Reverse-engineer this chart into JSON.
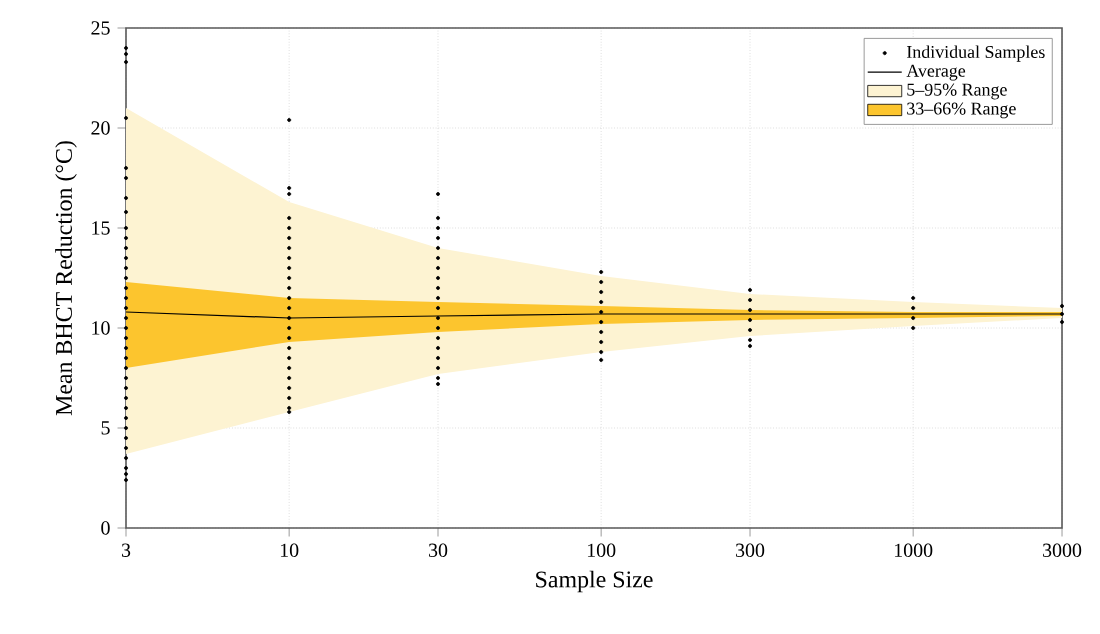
{
  "chart_data": {
    "type": "line",
    "xlabel": "Sample Size",
    "ylabel": "Mean BHCT Reduction (°C)",
    "log": "x",
    "grid": true,
    "legend": "top right",
    "xlim": [
      3,
      3000
    ],
    "xticks": [
      3,
      10,
      30,
      100,
      300,
      1000,
      3000
    ],
    "ylim": [
      0,
      25
    ],
    "yticks": [
      0,
      5,
      10,
      15,
      20,
      25
    ],
    "series": [
      {
        "name": "Individual Samples",
        "type": "scatter",
        "marker": "circle",
        "color": "#000000",
        "x": [
          3,
          3,
          3,
          3,
          3,
          3,
          3,
          3,
          3,
          3,
          3,
          3,
          3,
          3,
          3,
          3,
          3,
          3,
          3,
          3,
          3,
          3,
          3,
          3,
          3,
          3,
          3,
          3,
          3,
          3,
          3,
          3,
          3,
          3,
          3,
          10,
          10,
          10,
          10,
          10,
          10,
          10,
          10,
          10,
          10,
          10,
          10,
          10,
          10,
          10,
          10,
          10,
          10,
          10,
          10,
          10,
          10,
          10,
          10,
          30,
          30,
          30,
          30,
          30,
          30,
          30,
          30,
          30,
          30,
          30,
          30,
          30,
          30,
          30,
          30,
          30,
          30,
          30,
          100,
          100,
          100,
          100,
          100,
          100,
          100,
          100,
          100,
          100,
          300,
          300,
          300,
          300,
          300,
          300,
          300,
          1000,
          1000,
          1000,
          1000,
          3000,
          3000,
          3000
        ],
        "values": [
          24,
          23.7,
          23.3,
          20.5,
          18,
          17.5,
          16.5,
          15.8,
          15,
          14.5,
          14,
          13.5,
          13,
          12.5,
          12,
          11.5,
          11,
          10.5,
          10,
          9.5,
          9,
          8.5,
          8,
          7.5,
          7,
          6.5,
          6,
          5.5,
          5,
          4.5,
          4,
          3.5,
          3,
          2.7,
          2.4,
          20.4,
          17,
          16.7,
          15.5,
          15,
          14.5,
          14,
          13.5,
          13,
          12.5,
          12,
          11.5,
          11,
          10.5,
          10,
          9.5,
          9,
          8.5,
          8,
          7.5,
          7,
          6.5,
          6,
          5.8,
          16.7,
          15.5,
          15,
          14.5,
          14,
          13.5,
          13,
          12.5,
          12,
          11.5,
          11,
          10.5,
          10,
          9.5,
          9,
          8.5,
          8,
          7.5,
          7.2,
          12.8,
          12.3,
          11.8,
          11.3,
          10.8,
          10.3,
          9.8,
          9.3,
          8.8,
          8.4,
          11.9,
          11.4,
          10.9,
          10.4,
          9.9,
          9.4,
          9.1,
          11.5,
          11,
          10.5,
          10,
          11.1,
          10.7,
          10.3
        ]
      },
      {
        "name": "Average",
        "line_style": "solid",
        "color": "#000000",
        "x": [
          3,
          10,
          30,
          100,
          300,
          1000,
          3000
        ],
        "values": [
          10.8,
          10.5,
          10.6,
          10.7,
          10.7,
          10.7,
          10.7
        ]
      },
      {
        "name": "5–95% Range",
        "color": "#fdf3d2",
        "x": [
          3,
          10,
          30,
          100,
          300,
          1000,
          3000
        ],
        "values": [
          null,
          null,
          null,
          null,
          null,
          null,
          null
        ],
        "lower": [
          3.7,
          5.8,
          7.7,
          8.8,
          9.6,
          10.1,
          10.5
        ],
        "upper": [
          21,
          16.3,
          14,
          12.6,
          11.7,
          11.3,
          11
        ]
      },
      {
        "name": "33–66% Range",
        "color": "#fcc52e",
        "x": [
          3,
          10,
          30,
          100,
          300,
          1000,
          3000
        ],
        "values": [
          null,
          null,
          null,
          null,
          null,
          null,
          null
        ],
        "lower": [
          8,
          9.3,
          9.8,
          10.2,
          10.4,
          10.5,
          10.6
        ],
        "upper": [
          12.3,
          11.5,
          11.3,
          11.1,
          10.9,
          10.8,
          10.8
        ]
      }
    ]
  }
}
